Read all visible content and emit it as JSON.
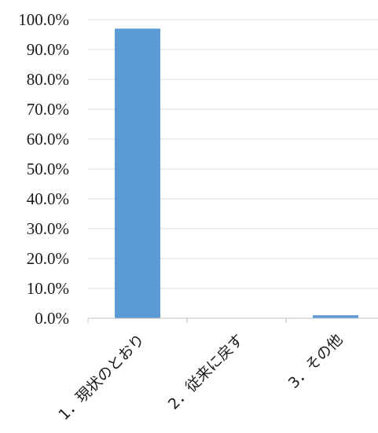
{
  "chart_data": {
    "type": "bar",
    "title": "",
    "xlabel": "",
    "ylabel": "",
    "categories": [
      "1．現状のとおり",
      "2．従来に戻す",
      "3．その他"
    ],
    "values": [
      97.0,
      0.0,
      1.0
    ],
    "ylim": [
      0,
      100
    ],
    "yticks": [
      "0.0%",
      "10.0%",
      "20.0%",
      "30.0%",
      "40.0%",
      "50.0%",
      "60.0%",
      "70.0%",
      "80.0%",
      "90.0%",
      "100.0%"
    ],
    "grid": true,
    "legend": "none",
    "bar_color": "#5b9bd5"
  }
}
